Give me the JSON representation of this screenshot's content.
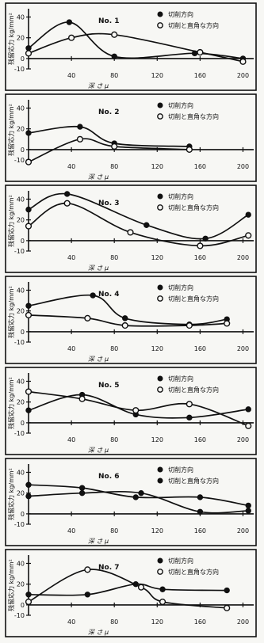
{
  "chart_data": [
    {
      "type": "line",
      "panel_label": "No. 1",
      "ylabel": "残留応力 kg/mm²",
      "xlabel": "深 さ μ",
      "xticks": [
        40,
        80,
        120,
        160,
        200
      ],
      "yticks": [
        -10,
        0,
        20,
        40
      ],
      "xlim": [
        0,
        210
      ],
      "ylim": [
        -10,
        48
      ],
      "legend": [
        "切削方向",
        "切削と直角な方向"
      ],
      "series": [
        {
          "name": "切削方向",
          "marker": "filled",
          "x": [
            0,
            38,
            80,
            155,
            200
          ],
          "y": [
            10,
            35,
            2,
            5,
            0
          ]
        },
        {
          "name": "切削と直角な方向",
          "marker": "open",
          "x": [
            0,
            40,
            80,
            160,
            200
          ],
          "y": [
            5,
            20,
            23,
            6,
            -3
          ]
        }
      ]
    },
    {
      "type": "line",
      "panel_label": "No. 2",
      "ylabel": "残留応力 kg/mm²",
      "xlabel": "深 さ μ",
      "xticks": [
        40,
        80,
        120,
        160,
        200
      ],
      "yticks": [
        -10,
        0,
        20,
        40
      ],
      "xlim": [
        0,
        210
      ],
      "ylim": [
        -10,
        48
      ],
      "legend": [
        "切削方向",
        "切削と直角な方向"
      ],
      "series": [
        {
          "name": "切削方向",
          "marker": "filled",
          "x": [
            0,
            48,
            80,
            150
          ],
          "y": [
            16,
            22,
            6,
            3
          ]
        },
        {
          "name": "切削と直角な方向",
          "marker": "open",
          "x": [
            0,
            48,
            80,
            150
          ],
          "y": [
            -12,
            10,
            3,
            0
          ]
        }
      ]
    },
    {
      "type": "line",
      "panel_label": "No. 3",
      "ylabel": "残留応力 kg/mm²",
      "xlabel": "深 さ μ",
      "xticks": [
        40,
        80,
        120,
        160,
        200
      ],
      "yticks": [
        -10,
        0,
        20,
        40
      ],
      "xlim": [
        0,
        210
      ],
      "ylim": [
        -10,
        48
      ],
      "legend": [
        "切削方向",
        "切削と直角な方向"
      ],
      "series": [
        {
          "name": "切削方向",
          "marker": "filled",
          "x": [
            0,
            36,
            110,
            165,
            205
          ],
          "y": [
            30,
            45,
            15,
            2,
            25
          ]
        },
        {
          "name": "切削と直角な方向",
          "marker": "open",
          "x": [
            0,
            36,
            95,
            160,
            205
          ],
          "y": [
            14,
            36,
            8,
            -5,
            5
          ]
        }
      ]
    },
    {
      "type": "line",
      "panel_label": "No. 4",
      "ylabel": "残留応力 kg/mm²",
      "xlabel": "深 さ μ",
      "xticks": [
        40,
        80,
        120,
        160,
        200
      ],
      "yticks": [
        -10,
        0,
        20,
        40
      ],
      "xlim": [
        0,
        210
      ],
      "ylim": [
        -10,
        48
      ],
      "legend": [
        "切削方向",
        "切削と直角な方向"
      ],
      "series": [
        {
          "name": "切削方向",
          "marker": "filled",
          "x": [
            0,
            60,
            90,
            150,
            185
          ],
          "y": [
            25,
            35,
            13,
            7,
            12
          ]
        },
        {
          "name": "切削と直角な方向",
          "marker": "open",
          "x": [
            0,
            55,
            90,
            150,
            185
          ],
          "y": [
            16,
            13,
            6,
            6,
            8
          ]
        }
      ]
    },
    {
      "type": "line",
      "panel_label": "No. 5",
      "ylabel": "残留応力 kg/mm²",
      "xlabel": "深 さ μ",
      "xticks": [
        40,
        80,
        120,
        160,
        200
      ],
      "yticks": [
        -10,
        0,
        20,
        40
      ],
      "xlim": [
        0,
        210
      ],
      "ylim": [
        -10,
        48
      ],
      "legend": [
        "切削方向",
        "切削と直角な方向"
      ],
      "series": [
        {
          "name": "切削方向",
          "marker": "filled",
          "x": [
            0,
            50,
            100,
            150,
            205
          ],
          "y": [
            12,
            27,
            8,
            5,
            13
          ]
        },
        {
          "name": "切削と直角な方向",
          "marker": "open",
          "x": [
            0,
            50,
            100,
            150,
            205
          ],
          "y": [
            30,
            23,
            12,
            18,
            -3
          ]
        }
      ]
    },
    {
      "type": "line",
      "panel_label": "No. 6",
      "ylabel": "残留応力 kg/mm²",
      "xlabel": "深 さ μ",
      "xticks": [
        40,
        80,
        120,
        160,
        200
      ],
      "yticks": [
        -10,
        0,
        20,
        40
      ],
      "xlim": [
        0,
        210
      ],
      "ylim": [
        -10,
        48
      ],
      "legend": [
        "切削方向",
        "切削と直角な方向"
      ],
      "series": [
        {
          "name": "切削方向",
          "marker": "filled",
          "x": [
            0,
            50,
            100,
            160,
            205
          ],
          "y": [
            28,
            25,
            16,
            16,
            8
          ]
        },
        {
          "name": "切削と直角な方向",
          "marker": "filled",
          "x": [
            0,
            50,
            105,
            160,
            205
          ],
          "y": [
            17,
            20,
            20,
            2,
            3
          ]
        }
      ]
    },
    {
      "type": "line",
      "panel_label": "No. 7",
      "ylabel": "残留応力 kg/mm²",
      "xlabel": "深 さ μ",
      "xticks": [
        40,
        80,
        120,
        160,
        200
      ],
      "yticks": [
        -10,
        0,
        20,
        40
      ],
      "xlim": [
        0,
        210
      ],
      "ylim": [
        -10,
        48
      ],
      "legend": [
        "切削方向",
        "切削と直角な方向"
      ],
      "series": [
        {
          "name": "切削方向",
          "marker": "filled",
          "x": [
            0,
            55,
            100,
            125,
            185
          ],
          "y": [
            10,
            10,
            20,
            15,
            14
          ]
        },
        {
          "name": "切削と直角な方向",
          "marker": "open",
          "x": [
            0,
            55,
            105,
            125,
            185
          ],
          "y": [
            3,
            34,
            17,
            3,
            -3
          ]
        }
      ]
    }
  ]
}
